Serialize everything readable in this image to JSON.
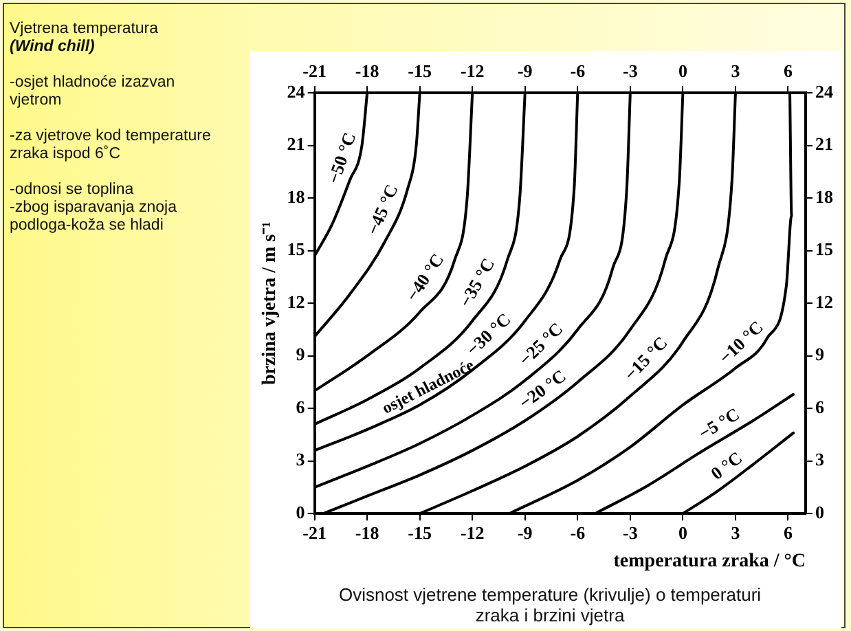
{
  "chart_data": {
    "type": "line",
    "title": "Vjetrena temperatura",
    "subtitle": "(Wind chill)",
    "xlabel": "temperatura zraka / °C",
    "ylabel": "brzina vjetra / m s⁻¹",
    "xlim": [
      -21,
      7
    ],
    "xticks": [
      -21,
      -18,
      -15,
      -12,
      -9,
      -6,
      -3,
      0,
      3,
      6
    ],
    "x2lim": [
      -21,
      7
    ],
    "x2ticks": [
      -21,
      -18,
      -15,
      -12,
      -9,
      -6,
      -3,
      0,
      3,
      6
    ],
    "ylim": [
      0,
      24
    ],
    "yticks": [
      0,
      3,
      6,
      9,
      12,
      15,
      18,
      21,
      24
    ],
    "y2lim": [
      0,
      24
    ],
    "y2ticks": [
      0,
      3,
      6,
      9,
      12,
      15,
      18,
      21,
      24
    ],
    "legend": false,
    "series": [
      {
        "name": "−50 °C",
        "color": "#000000",
        "x": [
          -21,
          -20,
          -19,
          -18.3,
          -18
        ],
        "values": [
          14.7,
          16.5,
          19,
          21,
          24
        ]
      },
      {
        "name": "−45 °C",
        "color": "#000000",
        "x": [
          -21,
          -19,
          -17,
          -15.7,
          -15.2,
          -15
        ],
        "values": [
          10.1,
          12.5,
          15.5,
          18.5,
          21,
          24
        ]
      },
      {
        "name": "−40 °C",
        "color": "#000000",
        "x": [
          -21,
          -18,
          -15,
          -13,
          -12.3,
          -12
        ],
        "values": [
          7,
          9,
          11.5,
          14.5,
          18,
          24
        ]
      },
      {
        "name": "−35 °C",
        "color": "#000000",
        "x": [
          -21,
          -18,
          -15,
          -12,
          -10,
          -9.3,
          -9
        ],
        "values": [
          5.1,
          6.5,
          8.3,
          11,
          14.5,
          18,
          24
        ]
      },
      {
        "name": "−30 °C",
        "color": "#000000",
        "x": [
          -21,
          -18,
          -15,
          -12,
          -9,
          -7,
          -6.2,
          -6
        ],
        "values": [
          3.6,
          4.8,
          6.2,
          8.2,
          11,
          14.5,
          18.5,
          24
        ]
      },
      {
        "name": "−25 °C",
        "color": "#000000",
        "x": [
          -21,
          -18,
          -15,
          -12,
          -9,
          -6,
          -4,
          -3.2,
          -3
        ],
        "values": [
          1.5,
          2.7,
          4,
          5.6,
          7.6,
          10.5,
          14,
          18.5,
          24
        ]
      },
      {
        "name": "−20 °C",
        "color": "#000000",
        "x": [
          -20.5,
          -18,
          -15,
          -12,
          -9,
          -6,
          -3,
          -1,
          -0.2,
          0
        ],
        "values": [
          0,
          1,
          2.2,
          3.6,
          5.3,
          7.5,
          10.5,
          14.5,
          19,
          24
        ]
      },
      {
        "name": "−15 °C",
        "color": "#000000",
        "x": [
          -15,
          -12,
          -9,
          -6,
          -3,
          0,
          2,
          2.8,
          3
        ],
        "values": [
          0,
          1.3,
          2.7,
          4.4,
          6.7,
          9.8,
          14,
          19,
          24
        ]
      },
      {
        "name": "−10 °C",
        "color": "#000000",
        "x": [
          -9.9,
          -6,
          -3,
          0,
          3,
          4.8,
          5.9,
          6.2,
          6.1
        ],
        "values": [
          0,
          1.9,
          3.8,
          6.2,
          8.3,
          10,
          13,
          17,
          24
        ]
      },
      {
        "name": "−5 °C",
        "color": "#000000",
        "x": [
          -5,
          -2,
          1,
          4,
          6.3
        ],
        "values": [
          0,
          1.6,
          3.5,
          5.3,
          6.8
        ]
      },
      {
        "name": "0 °C",
        "color": "#000000",
        "x": [
          0,
          2,
          4,
          6.3
        ],
        "values": [
          0,
          1.3,
          2.8,
          4.6
        ]
      }
    ],
    "annotations": [
      "-osjet hladnoće izazvan vjetrom",
      "-za vjetrove kod temperature zraka ispod 6˚C",
      "-odnosi se toplina\n-zbog isparavanja znoja podloga-koža se hladi",
      "osjet hladnoće",
      "Ovisnost vjetrene temperature (krivulje) o temperaturi zraka i brzini vjetra"
    ]
  }
}
